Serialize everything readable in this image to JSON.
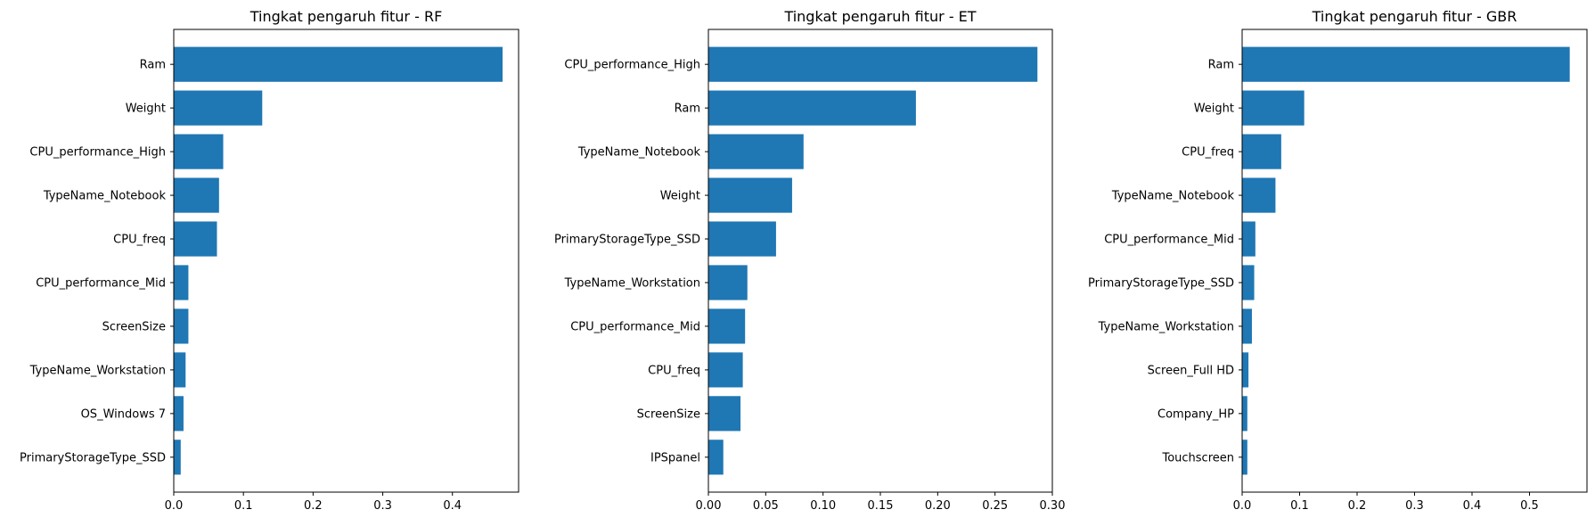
{
  "chart_data": [
    {
      "type": "bar",
      "orientation": "horizontal",
      "title": "Tingkat pengaruh fitur - RF",
      "categories": [
        "Ram",
        "Weight",
        "CPU_performance_High",
        "TypeName_Notebook",
        "CPU_freq",
        "CPU_performance_Mid",
        "ScreenSize",
        "TypeName_Workstation",
        "OS_Windows 7",
        "PrimaryStorageType_SSD"
      ],
      "values": [
        0.472,
        0.127,
        0.071,
        0.065,
        0.062,
        0.021,
        0.021,
        0.017,
        0.014,
        0.01
      ],
      "xlim": [
        0,
        0.495
      ],
      "xticks": [
        0.0,
        0.1,
        0.2,
        0.3,
        0.4
      ],
      "xtick_labels": [
        "0.0",
        "0.1",
        "0.2",
        "0.3",
        "0.4"
      ],
      "color": "#1f77b4",
      "grid": false
    },
    {
      "type": "bar",
      "orientation": "horizontal",
      "title": "Tingkat pengaruh fitur - ET",
      "categories": [
        "CPU_performance_High",
        "Ram",
        "TypeName_Notebook",
        "Weight",
        "PrimaryStorageType_SSD",
        "TypeName_Workstation",
        "CPU_performance_Mid",
        "CPU_freq",
        "ScreenSize",
        "IPSpanel"
      ],
      "values": [
        0.287,
        0.181,
        0.083,
        0.073,
        0.059,
        0.034,
        0.032,
        0.03,
        0.028,
        0.013
      ],
      "xlim": [
        0,
        0.3
      ],
      "xticks": [
        0.0,
        0.05,
        0.1,
        0.15,
        0.2,
        0.25,
        0.3
      ],
      "xtick_labels": [
        "0.00",
        "0.05",
        "0.10",
        "0.15",
        "0.20",
        "0.25",
        "0.30"
      ],
      "color": "#1f77b4",
      "grid": false
    },
    {
      "type": "bar",
      "orientation": "horizontal",
      "title": "Tingkat pengaruh fitur - GBR",
      "categories": [
        "Ram",
        "Weight",
        "CPU_freq",
        "TypeName_Notebook",
        "CPU_performance_Mid",
        "PrimaryStorageType_SSD",
        "TypeName_Workstation",
        "Screen_Full HD",
        "Company_HP",
        "Touchscreen"
      ],
      "values": [
        0.57,
        0.108,
        0.068,
        0.058,
        0.023,
        0.021,
        0.017,
        0.011,
        0.009,
        0.009
      ],
      "xlim": [
        0,
        0.6
      ],
      "xticks": [
        0.0,
        0.1,
        0.2,
        0.3,
        0.4,
        0.5
      ],
      "xtick_labels": [
        "0.0",
        "0.1",
        "0.2",
        "0.3",
        "0.4",
        "0.5"
      ],
      "color": "#1f77b4",
      "grid": false
    }
  ]
}
